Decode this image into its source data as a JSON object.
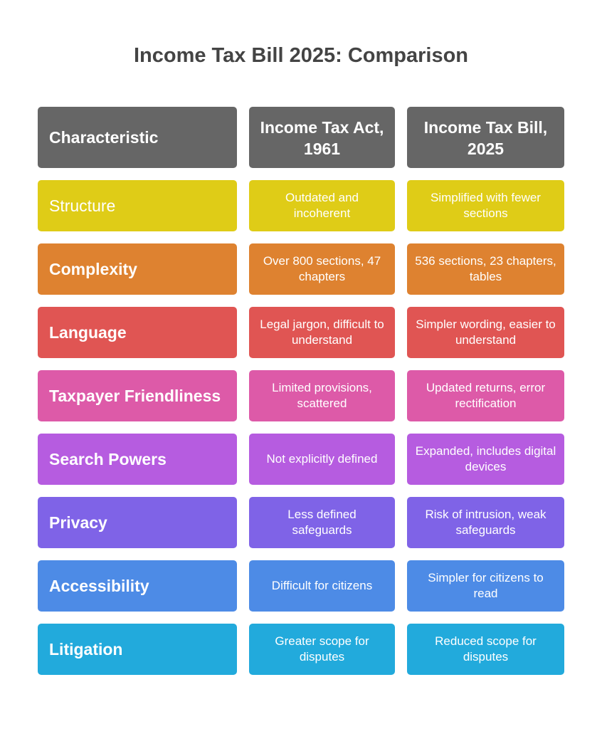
{
  "title": "Income Tax Bill 2025: Comparison",
  "header": {
    "characteristic": "Characteristic",
    "act": "Income Tax Act, 1961",
    "bill": "Income Tax Bill, 2025",
    "color": "#666666"
  },
  "rows": [
    {
      "label": "Structure",
      "act": "Outdated and incoherent",
      "bill": "Simplified with fewer sections",
      "color": "#dfcc17"
    },
    {
      "label": "Complexity",
      "act": "Over 800 sections, 47 chapters",
      "bill": "536 sections, 23 chapters, tables",
      "color": "#de8230"
    },
    {
      "label": "Language",
      "act": "Legal jargon, difficult to understand",
      "bill": "Simpler wording, easier to understand",
      "color": "#e05553"
    },
    {
      "label": "Taxpayer Friendliness",
      "act": "Limited provisions, scattered",
      "bill": "Updated returns, error rectification",
      "color": "#dd5aa8"
    },
    {
      "label": "Search Powers",
      "act": "Not explicitly defined",
      "bill": "Expanded, includes digital devices",
      "color": "#b65ce0"
    },
    {
      "label": "Privacy",
      "act": "Less defined safeguards",
      "bill": "Risk of intrusion, weak safeguards",
      "color": "#7f63e7"
    },
    {
      "label": "Accessibility",
      "act": "Difficult for citizens",
      "bill": "Simpler for citizens to read",
      "color": "#4d8be6"
    },
    {
      "label": "Litigation",
      "act": "Greater scope for disputes",
      "bill": "Reduced scope for disputes",
      "color": "#22aadc"
    }
  ]
}
